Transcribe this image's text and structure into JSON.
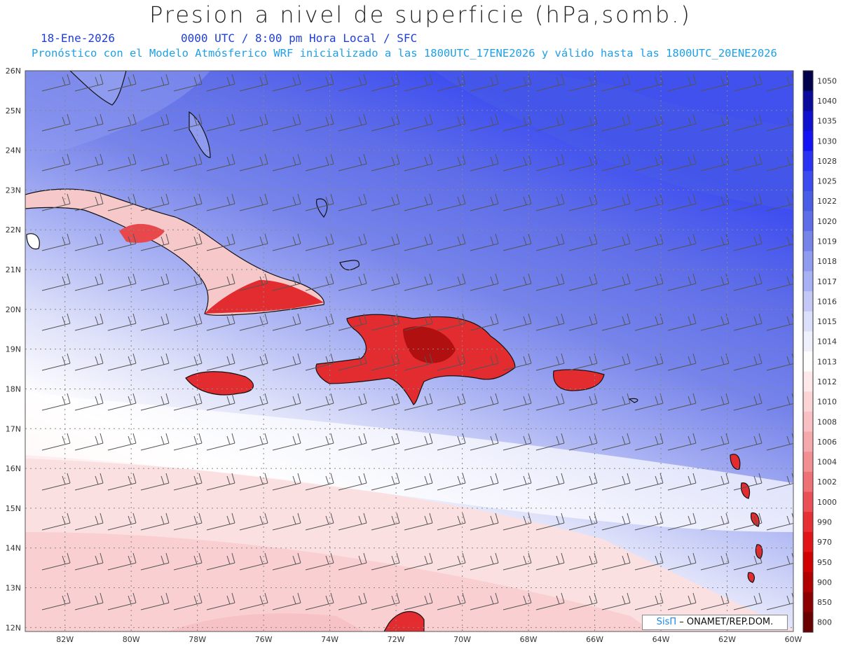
{
  "header": {
    "title": "Presion a nivel de superficie (hPa,somb.)",
    "date": "18-Ene-2026",
    "time_info": "0000 UTC / 8:00 pm Hora Local / SFC",
    "model_info": "Pronóstico con el Modelo Atmósferico WRF inicializado a las 1800UTC_17ENE2026 y válido hasta las  1800UTC_20ENE2026"
  },
  "map": {
    "lat_labels": [
      "26N",
      "25N",
      "24N",
      "23N",
      "22N",
      "21N",
      "20N",
      "19N",
      "18N",
      "17N",
      "16N",
      "15N",
      "14N",
      "13N",
      "12N"
    ],
    "lon_labels": [
      "82W",
      "80W",
      "78W",
      "76W",
      "74W",
      "72W",
      "70W",
      "68W",
      "66W",
      "64W",
      "62W",
      "60W"
    ],
    "extent": {
      "lon_min": -83.2,
      "lon_max": -60.0,
      "lat_min": 11.9,
      "lat_max": 26.0
    }
  },
  "colorbar": {
    "levels": [
      "1050",
      "1040",
      "1035",
      "1030",
      "1028",
      "1025",
      "1022",
      "1020",
      "1019",
      "1018",
      "1017",
      "1016",
      "1015",
      "1014",
      "1013",
      "1012",
      "1010",
      "1008",
      "1006",
      "1004",
      "1002",
      "1000",
      "990",
      "970",
      "950",
      "900",
      "850",
      "800"
    ],
    "colors": [
      "#02024d",
      "#0a0a9c",
      "#0f10d0",
      "#1313f5",
      "#2a33f3",
      "#3c4cf0",
      "#4a5de6",
      "#5f6ee8",
      "#7684ea",
      "#8f9bef",
      "#a8b1f3",
      "#c3c8f6",
      "#dcdff9",
      "#eef0fc",
      "#fdfdfe",
      "#fde9ea",
      "#fbd4d6",
      "#f8c0c2",
      "#f5a9ac",
      "#f28f93",
      "#ee7176",
      "#ea5055",
      "#e63034",
      "#e21418",
      "#d20000",
      "#b20000",
      "#8e0000",
      "#6a0000"
    ]
  },
  "credit": {
    "brand": "SisΠ",
    "text": " – ONAMET/REP.DOM."
  }
}
